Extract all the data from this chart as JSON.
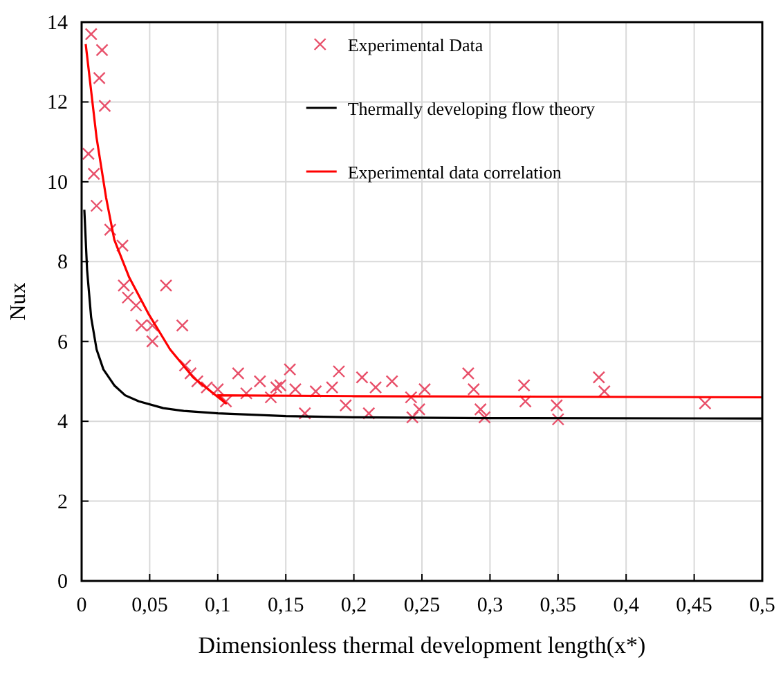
{
  "chart_data": {
    "type": "scatter",
    "xlabel": "Dimensionless thermal development length(x*)",
    "ylabel": "Nux",
    "xlim": [
      0,
      0.5
    ],
    "ylim": [
      0,
      14
    ],
    "xticks": [
      0,
      {
        "value": 0.05,
        "label": "0,05"
      },
      {
        "value": 0.1,
        "label": "0,1"
      },
      {
        "value": 0.15,
        "label": "0,15"
      },
      {
        "value": 0.2,
        "label": "0,2"
      },
      {
        "value": 0.25,
        "label": "0,25"
      },
      {
        "value": 0.3,
        "label": "0,3"
      },
      {
        "value": 0.35,
        "label": "0,35"
      },
      {
        "value": 0.4,
        "label": "0,4"
      },
      {
        "value": 0.45,
        "label": "0,45"
      },
      {
        "value": 0.5,
        "label": "0,5"
      }
    ],
    "yticks": [
      0,
      2,
      4,
      6,
      8,
      10,
      12,
      14
    ],
    "grid": true,
    "legend": "top right",
    "series": [
      {
        "name": "Experimental Data",
        "marker": "cross",
        "color": "#e8506a",
        "x": [
          0.007,
          0.015,
          0.013,
          0.017,
          0.005,
          0.009,
          0.011,
          0.021,
          0.03,
          0.031,
          0.034,
          0.04,
          0.062,
          0.052,
          0.044,
          0.052,
          0.074,
          0.076,
          0.08,
          0.085,
          0.092,
          0.1,
          0.106,
          0.115,
          0.121,
          0.131,
          0.139,
          0.143,
          0.146,
          0.153,
          0.157,
          0.164,
          0.172,
          0.184,
          0.189,
          0.194,
          0.206,
          0.211,
          0.216,
          0.228,
          0.242,
          0.243,
          0.252,
          0.248,
          0.284,
          0.288,
          0.293,
          0.296,
          0.325,
          0.326,
          0.349,
          0.35,
          0.38,
          0.384,
          0.458
        ],
        "values": [
          13.7,
          13.3,
          12.6,
          11.9,
          10.7,
          10.2,
          9.4,
          8.8,
          8.4,
          7.4,
          7.1,
          6.9,
          7.4,
          6.4,
          6.4,
          6.0,
          6.4,
          5.4,
          5.2,
          5.0,
          4.85,
          4.8,
          4.5,
          5.2,
          4.7,
          5.0,
          4.6,
          4.85,
          4.9,
          5.3,
          4.8,
          4.2,
          4.75,
          4.85,
          5.25,
          4.4,
          5.1,
          4.2,
          4.85,
          5.0,
          4.6,
          4.1,
          4.8,
          4.3,
          5.2,
          4.8,
          4.3,
          4.1,
          4.9,
          4.5,
          4.4,
          4.05,
          5.1,
          4.75,
          4.45
        ]
      },
      {
        "name": "Thermally developing flow theory",
        "type": "line",
        "marker": "none",
        "line_style": "solid",
        "color": "#000000",
        "x": [
          0.002,
          0.004,
          0.007,
          0.011,
          0.016,
          0.024,
          0.032,
          0.042,
          0.06,
          0.075,
          0.1,
          0.15,
          0.2,
          0.3,
          0.5
        ],
        "values": [
          9.3,
          7.8,
          6.6,
          5.8,
          5.3,
          4.9,
          4.65,
          4.5,
          4.33,
          4.26,
          4.2,
          4.13,
          4.1,
          4.08,
          4.07
        ]
      },
      {
        "name": "Experimental data correlation",
        "type": "line",
        "marker": "none",
        "line_style": "solid",
        "color": "#ff0000",
        "x": [
          0.003,
          0.011,
          0.018,
          0.024,
          0.035,
          0.049,
          0.065,
          0.082,
          0.106,
          0.1,
          0.2,
          0.5
        ],
        "values": [
          13.45,
          11.1,
          9.6,
          8.55,
          7.6,
          6.7,
          5.8,
          5.1,
          4.45,
          4.65,
          4.63,
          4.6
        ]
      }
    ]
  }
}
